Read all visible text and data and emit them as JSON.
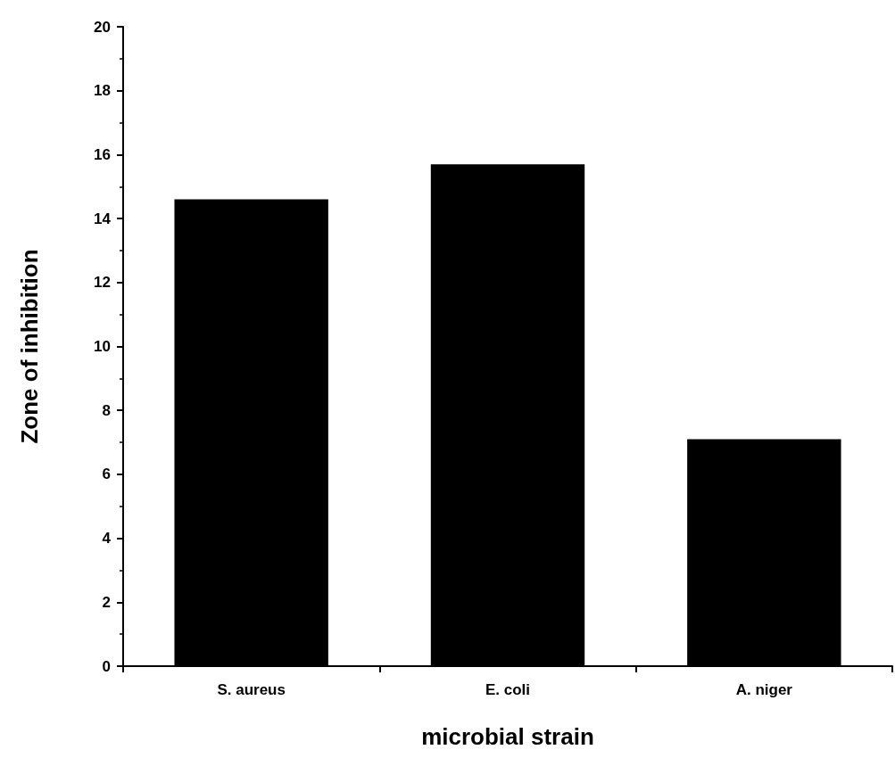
{
  "chart_data": {
    "type": "bar",
    "xlabel": "microbial strain",
    "ylabel": "Zone of inhibition",
    "categories": [
      "S. aureus",
      "E. coli",
      "A. niger"
    ],
    "values": [
      14.6,
      15.7,
      7.1
    ],
    "color": "#000000",
    "ylim": [
      0,
      20
    ],
    "yticks": [
      0,
      2,
      4,
      6,
      8,
      10,
      12,
      14,
      16,
      18,
      20
    ],
    "grid": false
  }
}
